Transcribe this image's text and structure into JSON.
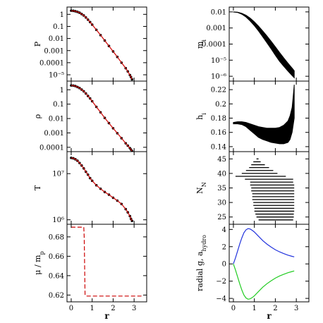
{
  "chart_data": [
    {
      "id": "P",
      "type": "scatter",
      "ylabel": "P",
      "yscale": "log",
      "xlim": [
        -0.2,
        3.6
      ],
      "ylim": [
        3e-06,
        4
      ],
      "yticks": [
        1,
        0.1,
        0.01,
        0.001,
        0.0001,
        1e-05
      ],
      "ytick_labels": [
        "1",
        "0.1",
        "0.01",
        "0.001",
        "0.0001",
        "10⁻⁵"
      ],
      "xticks": [
        0,
        1,
        2,
        3
      ],
      "xtick_labels": [],
      "series": [
        {
          "kind": "scatter",
          "color": "#000000",
          "x": [
            0.0,
            0.1,
            0.2,
            0.3,
            0.4,
            0.5,
            0.6,
            0.7,
            0.8,
            0.9,
            1.0,
            1.2,
            1.4,
            1.6,
            1.8,
            2.0,
            2.2,
            2.4,
            2.6,
            2.7,
            2.8,
            2.85,
            2.9
          ],
          "y": [
            2.0,
            1.95,
            1.8,
            1.6,
            1.35,
            1.05,
            0.8,
            0.55,
            0.36,
            0.23,
            0.14,
            0.052,
            0.019,
            0.0068,
            0.0024,
            0.00085,
            0.0003,
            0.0001,
            3.5e-05,
            1.9e-05,
            9.5e-06,
            6.5e-06,
            4.2e-06
          ]
        },
        {
          "kind": "line",
          "color": "#cc0000",
          "x": [
            0.0,
            0.1,
            0.2,
            0.3,
            0.4,
            0.5,
            0.6,
            0.7,
            0.8,
            0.9,
            1.0,
            1.2,
            1.4,
            1.6,
            1.8,
            2.0,
            2.2,
            2.4,
            2.6,
            2.7,
            2.8,
            2.85,
            2.9
          ],
          "y": [
            2.0,
            1.95,
            1.8,
            1.6,
            1.35,
            1.05,
            0.8,
            0.55,
            0.36,
            0.23,
            0.14,
            0.052,
            0.019,
            0.0068,
            0.0024,
            0.00085,
            0.0003,
            0.0001,
            3.5e-05,
            1.9e-05,
            9.5e-06,
            6.5e-06,
            4.2e-06
          ]
        }
      ]
    },
    {
      "id": "rho",
      "type": "scatter",
      "ylabel": "ρ",
      "yscale": "log",
      "xlim": [
        -0.2,
        3.6
      ],
      "ylim": [
        5e-05,
        4
      ],
      "yticks": [
        1,
        0.1,
        0.01,
        0.001,
        0.0001
      ],
      "ytick_labels": [
        "1",
        "0.1",
        "0.01",
        "0.001",
        "0.0001"
      ],
      "xticks": [
        0,
        1,
        2,
        3
      ],
      "xtick_labels": [],
      "series": [
        {
          "kind": "scatter",
          "color": "#000000",
          "x": [
            0.0,
            0.1,
            0.2,
            0.3,
            0.4,
            0.5,
            0.6,
            0.7,
            0.8,
            0.9,
            1.0,
            1.2,
            1.4,
            1.6,
            1.8,
            2.0,
            2.2,
            2.4,
            2.6,
            2.7,
            2.8,
            2.85,
            2.9
          ],
          "y": [
            2.0,
            1.95,
            1.8,
            1.55,
            1.3,
            1.02,
            0.78,
            0.55,
            0.37,
            0.25,
            0.16,
            0.065,
            0.027,
            0.011,
            0.0048,
            0.0021,
            0.00095,
            0.00043,
            0.00019,
            0.00013,
            8.8e-05,
            7e-05,
            5.5e-05
          ]
        },
        {
          "kind": "line",
          "color": "#cc0000",
          "x": [
            0.0,
            0.1,
            0.2,
            0.3,
            0.4,
            0.5,
            0.6,
            0.7,
            0.8,
            0.9,
            1.0,
            1.2,
            1.4,
            1.6,
            1.8,
            2.0,
            2.2,
            2.4,
            2.6,
            2.7,
            2.8,
            2.85,
            2.9
          ],
          "y": [
            2.0,
            1.95,
            1.8,
            1.55,
            1.3,
            1.02,
            0.78,
            0.55,
            0.37,
            0.25,
            0.16,
            0.065,
            0.027,
            0.011,
            0.0048,
            0.0021,
            0.00095,
            0.00043,
            0.00019,
            0.00013,
            8.8e-05,
            7e-05,
            5.5e-05
          ]
        }
      ]
    },
    {
      "id": "T",
      "type": "scatter",
      "ylabel": "T",
      "yscale": "log",
      "xlim": [
        -0.2,
        3.6
      ],
      "ylim": [
        800000,
        30000000
      ],
      "yticks": [
        10000000,
        1000000
      ],
      "ytick_labels": [
        "10⁷",
        "10⁶"
      ],
      "xticks": [
        0,
        1,
        2,
        3
      ],
      "xtick_labels": [],
      "series": [
        {
          "kind": "scatter",
          "color": "#000000",
          "x": [
            0.0,
            0.1,
            0.2,
            0.3,
            0.4,
            0.5,
            0.6,
            0.7,
            0.8,
            0.9,
            1.0,
            1.2,
            1.4,
            1.6,
            1.8,
            2.0,
            2.2,
            2.4,
            2.6,
            2.7,
            2.8,
            2.85,
            2.9
          ],
          "y": [
            22000000,
            21500000,
            20500000,
            19000000,
            17000000,
            15000000,
            13000000,
            11000000,
            9500000,
            8000000,
            7000000,
            5600000,
            4700000,
            4000000,
            3500000,
            3000000,
            2600000,
            2200000,
            1700000,
            1450000,
            1200000,
            1050000,
            950000
          ]
        },
        {
          "kind": "line",
          "color": "#cc0000",
          "x": [
            0.0,
            0.1,
            0.2,
            0.3,
            0.4,
            0.5,
            0.6,
            0.7,
            0.8,
            0.9,
            1.0,
            1.2,
            1.4,
            1.6,
            1.8,
            2.0,
            2.2,
            2.4,
            2.6,
            2.7,
            2.8,
            2.85,
            2.9
          ],
          "y": [
            22000000,
            21500000,
            20500000,
            19000000,
            17000000,
            15000000,
            13000000,
            11000000,
            9500000,
            8000000,
            7000000,
            5600000,
            4700000,
            4000000,
            3500000,
            3000000,
            2600000,
            2200000,
            1700000,
            1450000,
            1200000,
            1050000,
            950000
          ]
        }
      ]
    },
    {
      "id": "mu",
      "type": "line",
      "ylabel": "μ / m",
      "ylabel_sub": "p",
      "yscale": "linear",
      "xlim": [
        -0.2,
        3.6
      ],
      "ylim": [
        0.613,
        0.693
      ],
      "yticks": [
        0.68,
        0.66,
        0.64,
        0.62
      ],
      "ytick_labels": [
        "0.68",
        "0.66",
        "0.64",
        "0.62"
      ],
      "xticks": [
        0,
        1,
        2,
        3
      ],
      "xtick_labels": [
        "0",
        "1",
        "2",
        "3"
      ],
      "xlabel": "r",
      "series": [
        {
          "kind": "line",
          "color": "#cc0000",
          "dashed": true,
          "x": [
            0.0,
            0.6,
            0.62,
            0.64,
            0.66,
            0.7,
            1.0,
            1.5,
            2.0,
            2.5,
            3.0,
            3.35
          ],
          "y": [
            0.69,
            0.69,
            0.68,
            0.65,
            0.62,
            0.619,
            0.619,
            0.619,
            0.619,
            0.619,
            0.619,
            0.619
          ]
        }
      ]
    },
    {
      "id": "m",
      "type": "scatter",
      "ylabel": "m",
      "ylabel_sub": "i",
      "yscale": "log",
      "xlim": [
        -0.2,
        3.6
      ],
      "ylim": [
        5e-07,
        0.02
      ],
      "yticks": [
        0.01,
        0.001,
        0.0001,
        1e-05,
        1e-06
      ],
      "ytick_labels": [
        "0.01",
        "0.001",
        "0.0001",
        "10⁻⁵",
        "10⁻⁶"
      ],
      "xticks": [
        0,
        1,
        2,
        3
      ],
      "xtick_labels": [],
      "series": [
        {
          "kind": "band",
          "color": "#000000",
          "x": [
            0.0,
            0.2,
            0.4,
            0.6,
            0.8,
            1.0,
            1.2,
            1.4,
            1.6,
            1.8,
            2.0,
            2.2,
            2.4,
            2.6,
            2.8,
            2.9
          ],
          "y_low": [
            0.0098,
            0.0092,
            0.0072,
            0.0048,
            0.0027,
            0.0014,
            0.00065,
            0.00028,
            0.00012,
            5e-05,
            2e-05,
            8.5e-06,
            4.2e-06,
            2.1e-06,
            1.1e-06,
            8e-07
          ],
          "y_high": [
            0.01,
            0.0096,
            0.0082,
            0.0062,
            0.0041,
            0.0024,
            0.0013,
            0.00065,
            0.00032,
            0.00015,
            6.8e-05,
            3e-05,
            1.4e-05,
            6.5e-06,
            3.2e-06,
            2.2e-06
          ]
        }
      ]
    },
    {
      "id": "h",
      "type": "scatter",
      "ylabel": "h",
      "ylabel_sub": "i",
      "yscale": "linear",
      "xlim": [
        -0.2,
        3.6
      ],
      "ylim": [
        0.133,
        0.232
      ],
      "yticks": [
        0.22,
        0.2,
        0.18,
        0.16,
        0.14
      ],
      "ytick_labels": [
        "0.22",
        "0.2",
        "0.18",
        "0.16",
        "0.14"
      ],
      "xticks": [
        0,
        1,
        2,
        3
      ],
      "xtick_labels": [],
      "series": [
        {
          "kind": "band",
          "color": "#000000",
          "x": [
            0.0,
            0.2,
            0.4,
            0.6,
            0.8,
            1.0,
            1.2,
            1.4,
            1.6,
            1.8,
            2.0,
            2.2,
            2.4,
            2.6,
            2.7,
            2.8,
            2.85,
            2.9
          ],
          "y_low": [
            0.172,
            0.172,
            0.171,
            0.168,
            0.163,
            0.158,
            0.153,
            0.15,
            0.148,
            0.146,
            0.145,
            0.144,
            0.144,
            0.146,
            0.15,
            0.16,
            0.17,
            0.18
          ],
          "y_high": [
            0.174,
            0.175,
            0.175,
            0.174,
            0.172,
            0.17,
            0.168,
            0.167,
            0.166,
            0.166,
            0.166,
            0.167,
            0.17,
            0.176,
            0.183,
            0.195,
            0.21,
            0.227
          ]
        }
      ]
    },
    {
      "id": "NN",
      "type": "scatter",
      "ylabel": "N",
      "ylabel_sub": "N",
      "yscale": "linear",
      "xlim": [
        -0.2,
        3.6
      ],
      "ylim": [
        22.5,
        47.5
      ],
      "yticks": [
        45,
        40,
        35,
        30,
        25
      ],
      "ytick_labels": [
        "45",
        "40",
        "35",
        "30",
        "25"
      ],
      "xticks": [
        0,
        1,
        2,
        3
      ],
      "xtick_labels": [],
      "series": [
        {
          "kind": "levels",
          "color": "#000000",
          "levels": [
            24,
            25,
            26,
            27,
            28,
            29,
            30,
            31,
            32,
            33,
            34,
            35,
            36,
            37,
            38,
            39,
            40,
            41,
            42,
            43,
            44,
            45
          ],
          "x_from": [
            1.2,
            1.1,
            1.05,
            1.0,
            1.0,
            0.95,
            0.95,
            0.9,
            0.9,
            0.9,
            0.85,
            0.85,
            0.8,
            0.8,
            0.55,
            0.1,
            0.4,
            0.6,
            0.75,
            0.85,
            0.95,
            1.1
          ],
          "x_to": [
            2.85,
            2.88,
            2.88,
            2.9,
            2.9,
            2.9,
            2.9,
            2.9,
            2.9,
            2.9,
            2.9,
            2.9,
            2.9,
            2.85,
            2.85,
            2.5,
            2.1,
            1.9,
            1.7,
            1.5,
            1.3,
            1.2
          ]
        }
      ]
    },
    {
      "id": "g",
      "type": "line",
      "ylabel": "radial g, a",
      "ylabel_sub": "hydro",
      "yscale": "linear",
      "xlim": [
        -0.2,
        3.6
      ],
      "ylim": [
        -4.4,
        4.6
      ],
      "yticks": [
        4,
        2,
        0,
        -2,
        -4
      ],
      "ytick_labels": [
        "4",
        "2",
        "0",
        "−2",
        "−4"
      ],
      "xticks": [
        0,
        1,
        2,
        3
      ],
      "xtick_labels": [
        "0",
        "1",
        "2",
        "3"
      ],
      "xlabel": "r",
      "series": [
        {
          "kind": "line",
          "color": "#2233dd",
          "x": [
            0.0,
            0.1,
            0.2,
            0.3,
            0.4,
            0.5,
            0.6,
            0.7,
            0.8,
            0.9,
            1.0,
            1.2,
            1.4,
            1.6,
            1.8,
            2.0,
            2.2,
            2.4,
            2.6,
            2.8,
            2.9
          ],
          "y": [
            0.0,
            0.7,
            1.5,
            2.3,
            3.0,
            3.6,
            3.95,
            4.1,
            4.05,
            3.9,
            3.7,
            3.2,
            2.7,
            2.3,
            1.95,
            1.65,
            1.4,
            1.2,
            1.02,
            0.88,
            0.82
          ]
        },
        {
          "kind": "line",
          "color": "#22cc22",
          "x": [
            0.0,
            0.1,
            0.2,
            0.3,
            0.4,
            0.5,
            0.6,
            0.7,
            0.8,
            0.9,
            1.0,
            1.2,
            1.4,
            1.6,
            1.8,
            2.0,
            2.2,
            2.4,
            2.6,
            2.8,
            2.9
          ],
          "y": [
            0.0,
            -0.7,
            -1.5,
            -2.3,
            -3.0,
            -3.6,
            -3.95,
            -4.1,
            -4.05,
            -3.9,
            -3.7,
            -3.2,
            -2.7,
            -2.3,
            -1.95,
            -1.65,
            -1.4,
            -1.2,
            -1.02,
            -0.88,
            -0.82
          ]
        }
      ]
    }
  ]
}
